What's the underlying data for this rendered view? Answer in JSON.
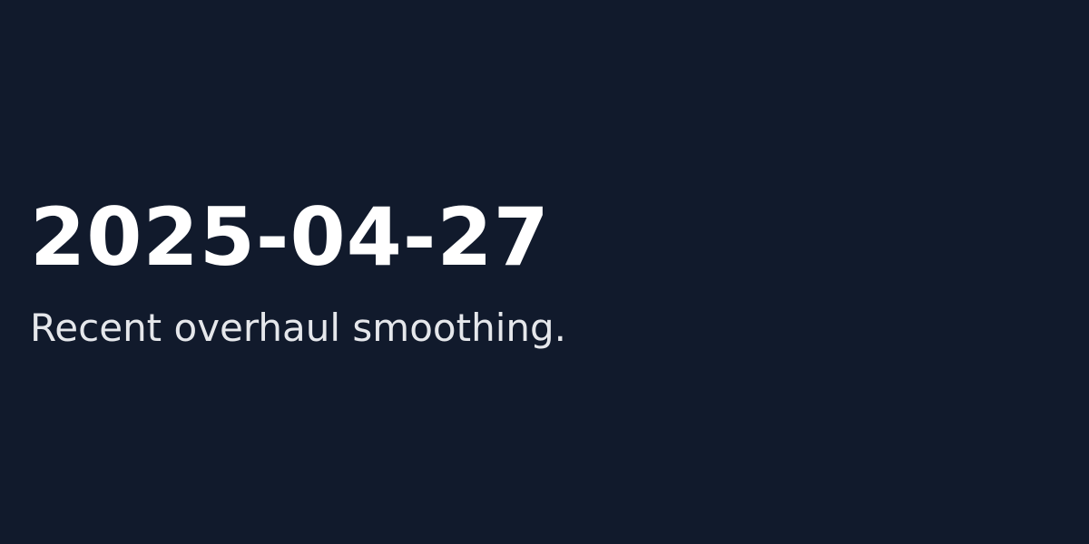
{
  "card": {
    "date": "2025-04-27",
    "description": "Recent overhaul smoothing."
  },
  "colors": {
    "background": "#111a2c",
    "date_text": "#ffffff",
    "description_text": "#e5e7eb"
  }
}
